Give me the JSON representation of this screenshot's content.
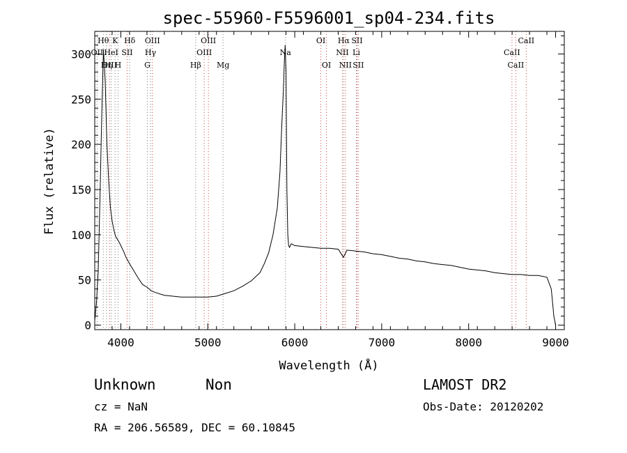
{
  "chart_data": {
    "type": "line",
    "title": "spec-55960-F5596001_sp04-234.fits",
    "xlabel": "Wavelength (Å)",
    "ylabel": "Flux (relative)",
    "xlim": [
      3700,
      9100
    ],
    "ylim": [
      -5,
      325
    ],
    "xticks": [
      4000,
      5000,
      6000,
      7000,
      8000,
      9000
    ],
    "yticks": [
      0,
      50,
      100,
      150,
      200,
      250,
      300
    ],
    "grid": false,
    "series": [
      {
        "x": [
          3700,
          3720,
          3740,
          3760,
          3780,
          3800,
          3820,
          3840,
          3860,
          3880,
          3900,
          3920,
          3940,
          3960,
          3980,
          4000,
          4030,
          4060,
          4100,
          4150,
          4200,
          4250,
          4300,
          4350,
          4400,
          4500,
          4600,
          4700,
          4800,
          4900,
          5000,
          5100,
          5200,
          5300,
          5400,
          5500,
          5600,
          5650,
          5700,
          5750,
          5800,
          5830,
          5850,
          5870,
          5880,
          5890,
          5900,
          5910,
          5920,
          5930,
          5940,
          5950,
          5960,
          5980,
          6000,
          6100,
          6200,
          6300,
          6400,
          6500,
          6560,
          6600,
          6700,
          6800,
          6900,
          7000,
          7100,
          7200,
          7300,
          7400,
          7500,
          7600,
          7700,
          7800,
          7900,
          8000,
          8100,
          8200,
          8300,
          8400,
          8500,
          8600,
          8700,
          8800,
          8900,
          8950,
          8980,
          9000
        ],
        "y": [
          5,
          25,
          60,
          140,
          230,
          305,
          270,
          200,
          160,
          130,
          115,
          105,
          98,
          95,
          92,
          88,
          82,
          75,
          68,
          60,
          52,
          45,
          42,
          38,
          36,
          33,
          32,
          31,
          31,
          31,
          31,
          32,
          35,
          38,
          43,
          49,
          58,
          68,
          80,
          100,
          130,
          170,
          220,
          260,
          290,
          310,
          280,
          150,
          100,
          88,
          86,
          88,
          90,
          89,
          88,
          87,
          86,
          85,
          85,
          84,
          75,
          83,
          82,
          81,
          79,
          78,
          76,
          74,
          73,
          71,
          70,
          68,
          67,
          66,
          64,
          62,
          61,
          60,
          58,
          57,
          56,
          56,
          55,
          55,
          53,
          40,
          10,
          0
        ]
      }
    ],
    "lines": [
      {
        "label": "Hθ",
        "x": 3798,
        "color": "gray",
        "row": 1
      },
      {
        "label": "OII",
        "x": 3727,
        "color": "gray",
        "row": 2
      },
      {
        "label": "OIII",
        "x": 3869,
        "color": "red",
        "row": 3
      },
      {
        "label": "Hη",
        "x": 3835,
        "color": "gray",
        "row": 3
      },
      {
        "label": "K",
        "x": 3934,
        "color": "gray",
        "row": 1
      },
      {
        "label": "HeI",
        "x": 3889,
        "color": "gray",
        "row": 2
      },
      {
        "label": "SII",
        "x": 4072,
        "color": "red",
        "row": 2
      },
      {
        "label": "H",
        "x": 3968,
        "color": "gray",
        "row": 3
      },
      {
        "label": "Hδ",
        "x": 4102,
        "color": "gray",
        "row": 1
      },
      {
        "label": "OIII",
        "x": 4363,
        "color": "red",
        "row": 1
      },
      {
        "label": "Hγ",
        "x": 4341,
        "color": "gray",
        "row": 2
      },
      {
        "label": "G",
        "x": 4305,
        "color": "gray",
        "row": 3
      },
      {
        "label": "OIII",
        "x": 5007,
        "color": "red",
        "row": 1
      },
      {
        "label": "OIII",
        "x": 4959,
        "color": "red",
        "row": 2
      },
      {
        "label": "Hβ",
        "x": 4861,
        "color": "gray",
        "row": 3
      },
      {
        "label": "Mg",
        "x": 5175,
        "color": "gray",
        "row": 3
      },
      {
        "label": "Na",
        "x": 5893,
        "color": "gray",
        "row": 2
      },
      {
        "label": "OI",
        "x": 6300,
        "color": "red",
        "row": 1
      },
      {
        "label": "OI",
        "x": 6364,
        "color": "red",
        "row": 3
      },
      {
        "label": "Hα",
        "x": 6563,
        "color": "gray",
        "row": 1
      },
      {
        "label": "SII",
        "x": 6716,
        "color": "red",
        "row": 1
      },
      {
        "label": "NII",
        "x": 6548,
        "color": "red",
        "row": 2
      },
      {
        "label": "Li",
        "x": 6708,
        "color": "gray",
        "row": 2
      },
      {
        "label": "NII",
        "x": 6583,
        "color": "red",
        "row": 3
      },
      {
        "label": "SII",
        "x": 6731,
        "color": "red",
        "row": 3
      },
      {
        "label": "CaII",
        "x": 8662,
        "color": "red",
        "row": 1
      },
      {
        "label": "CaII",
        "x": 8498,
        "color": "red",
        "row": 2
      },
      {
        "label": "CaII",
        "x": 8542,
        "color": "red",
        "row": 3
      }
    ]
  },
  "info": {
    "class": "Unknown",
    "subclass": "Non",
    "survey": "LAMOST DR2",
    "cz": "cz = NaN",
    "obs_date": "Obs-Date: 20120202",
    "radec": "RA = 206.56589, DEC =  60.10845"
  }
}
